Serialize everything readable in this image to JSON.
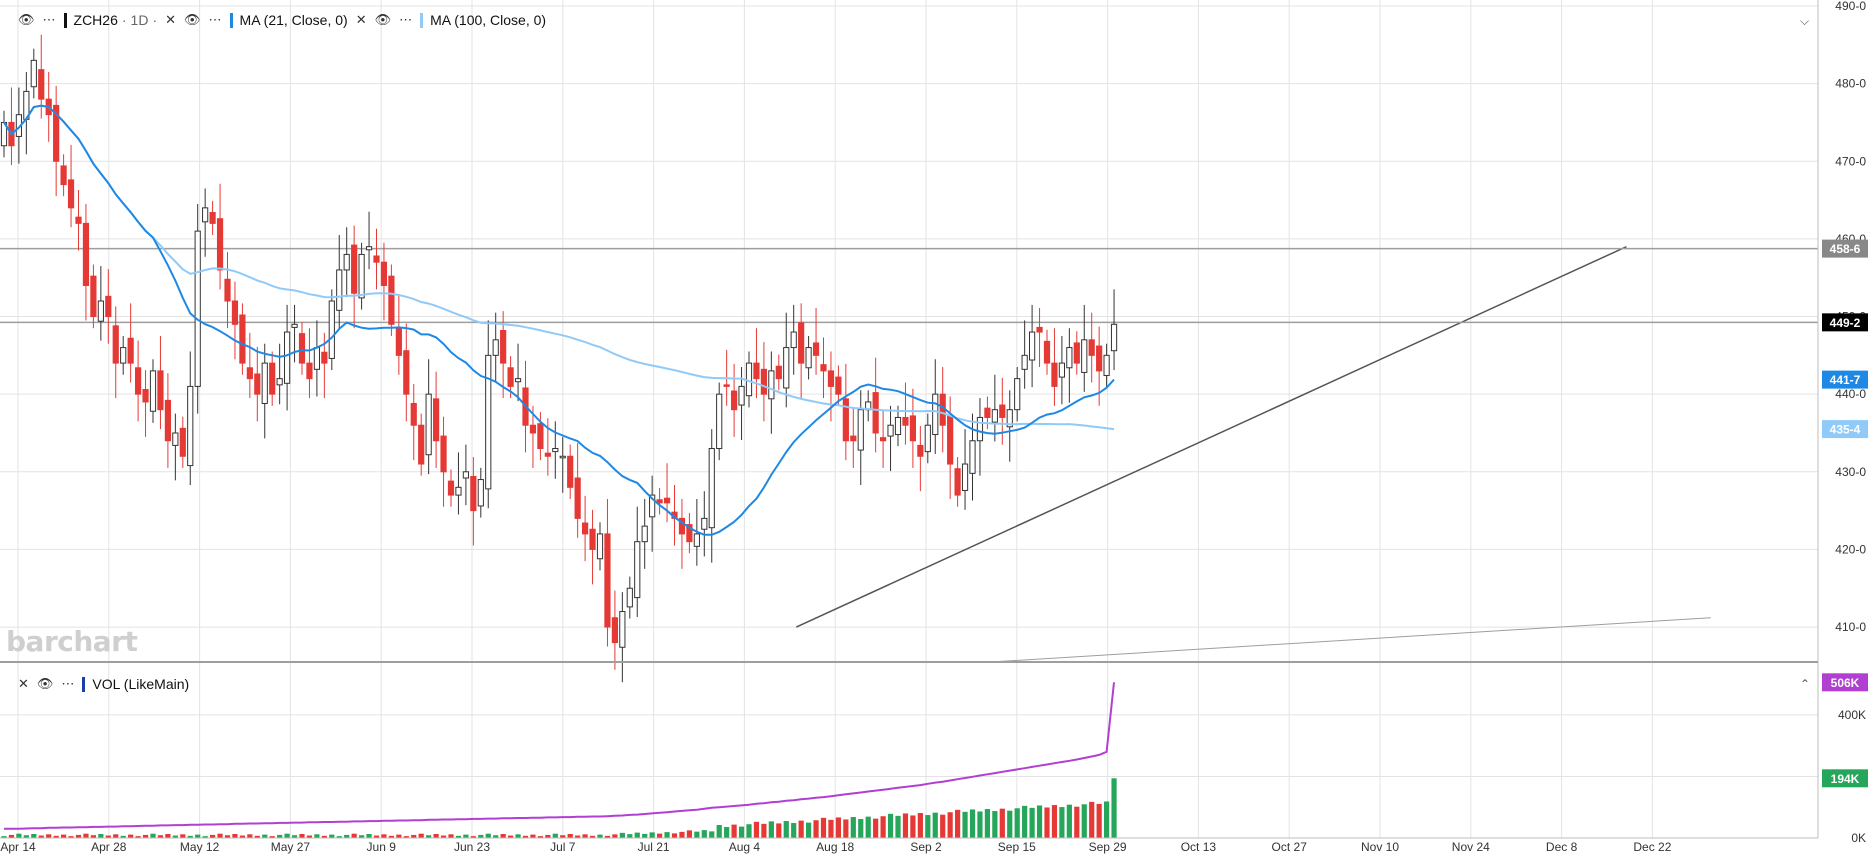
{
  "header": {
    "symbol": "ZCH26",
    "interval": "1D",
    "indicators": [
      {
        "label": "MA (21, Close, 0)",
        "color": "#1e88e5"
      },
      {
        "label": "MA (100, Close, 0)",
        "color": "#90caf9"
      }
    ]
  },
  "volume_pane": {
    "label": "VOL (LikeMain)",
    "color": "#1a3fa8"
  },
  "watermark": "barchart",
  "colors": {
    "up": "#ffffff",
    "down": "#e53935",
    "vol_up": "#26a65b",
    "vol_down": "#e53935",
    "ma21": "#1e88e5",
    "ma100": "#90caf9",
    "vol_avg": "#b13fd1"
  },
  "chart_data": [
    {
      "type": "candlestick",
      "x_tick_labels": [
        "Apr 14",
        "Apr 28",
        "May 12",
        "May 27",
        "Jun 9",
        "Jun 23",
        "Jul 7",
        "Jul 21",
        "Aug 4",
        "Aug 18",
        "Sep 2",
        "Sep 15",
        "Sep 29",
        "Oct 13",
        "Oct 27",
        "Nov 10",
        "Nov 24",
        "Dec 8",
        "Dec 22"
      ],
      "y_tick_labels": [
        "410-0",
        "420-0",
        "430-0",
        "440-0",
        "450-0",
        "460-0",
        "470-0",
        "480-0",
        "490-0"
      ],
      "ylim": [
        405.5,
        490
      ],
      "price_labels": [
        {
          "text": "458-6",
          "value": 458.75,
          "color": "#888888"
        },
        {
          "text": "449-2",
          "value": 449.25,
          "color": "#000000"
        },
        {
          "text": "441-7",
          "value": 441.875,
          "color": "#1e88e5"
        },
        {
          "text": "435-4",
          "value": 435.5,
          "color": "#90caf9"
        }
      ],
      "horizontal_lines": [
        458.75,
        449.25
      ],
      "closes": [
        475,
        472,
        476,
        479,
        483,
        478,
        476,
        470,
        467,
        464,
        462,
        454,
        450,
        452,
        450,
        444,
        446,
        444,
        440,
        439,
        443,
        438,
        434,
        435,
        432,
        441,
        461,
        464,
        462,
        456,
        452,
        449,
        444,
        442,
        440,
        444,
        440,
        442,
        448,
        449,
        444,
        442,
        446,
        444,
        452,
        456,
        458,
        453,
        458,
        459,
        457,
        454,
        449,
        445,
        440,
        436,
        431,
        440,
        434,
        430,
        427,
        428,
        430,
        425,
        429,
        445,
        447,
        444,
        441,
        442,
        436,
        435,
        433,
        432,
        433,
        432,
        428,
        424,
        422,
        420,
        422,
        410,
        408,
        412,
        415,
        421,
        423,
        427,
        426,
        426,
        424,
        422,
        421,
        422,
        424,
        433,
        440,
        441,
        438,
        441,
        444,
        442,
        440,
        443,
        442,
        446,
        448,
        444,
        446,
        445,
        443,
        441,
        440,
        434,
        434,
        438,
        439,
        435,
        434,
        436,
        437,
        436,
        434,
        432,
        436,
        440,
        436,
        431,
        427,
        431,
        434,
        437,
        437,
        438,
        437,
        438,
        442,
        445,
        448,
        448,
        444,
        441,
        444,
        446,
        444,
        447,
        445,
        443,
        445,
        449
      ],
      "ma21_endpoint": 441.875,
      "ma100_endpoint": 435.5,
      "trendlines": [
        {
          "from": [
            "Aug 12",
            410
          ],
          "to": [
            "Dec 18",
            459
          ]
        },
        {
          "from": [
            "Sep 12",
            405.5
          ],
          "to": [
            "Dec 31",
            411.2
          ]
        }
      ]
    },
    {
      "type": "bar",
      "name": "VOL (LikeMain)",
      "y_tick_labels": [
        "0K",
        "200K",
        "400K"
      ],
      "ylim": [
        0,
        520
      ],
      "value_labels": [
        {
          "text": "506K",
          "value": 506,
          "color": "#b13fd1"
        },
        {
          "text": "194K",
          "value": 194,
          "color": "#26a65b"
        }
      ],
      "volume_k": [
        30,
        30,
        30,
        31,
        32,
        32,
        33,
        33,
        34,
        34,
        35,
        35,
        36,
        36,
        37,
        37,
        38,
        38,
        39,
        40,
        40,
        41,
        41,
        42,
        42,
        43,
        43,
        44,
        44,
        45,
        45,
        46,
        46,
        47,
        47,
        48,
        48,
        49,
        49,
        50,
        50,
        51,
        51,
        52,
        52,
        53,
        53,
        54,
        54,
        55,
        55,
        56,
        56,
        57,
        57,
        58,
        58,
        59,
        59,
        60,
        60,
        61,
        61,
        62,
        62,
        63,
        63,
        64,
        64,
        65,
        65,
        66,
        66,
        67,
        67,
        68,
        68,
        69,
        69,
        70,
        70,
        71,
        72,
        73,
        75,
        76,
        78,
        80,
        82,
        84,
        86,
        88,
        90,
        92,
        95,
        98,
        100,
        102,
        104,
        106,
        108,
        111,
        113,
        116,
        118,
        121,
        123,
        126,
        128,
        131,
        133,
        136,
        139,
        142,
        145,
        148,
        151,
        154,
        157,
        160,
        163,
        166,
        169,
        172,
        176,
        180,
        183,
        187,
        191,
        195,
        199,
        203,
        207,
        211,
        215,
        219,
        223,
        227,
        231,
        235,
        239,
        243,
        247,
        251,
        255,
        260,
        265,
        270,
        280,
        194
      ],
      "avg_endpoint": 506
    }
  ]
}
